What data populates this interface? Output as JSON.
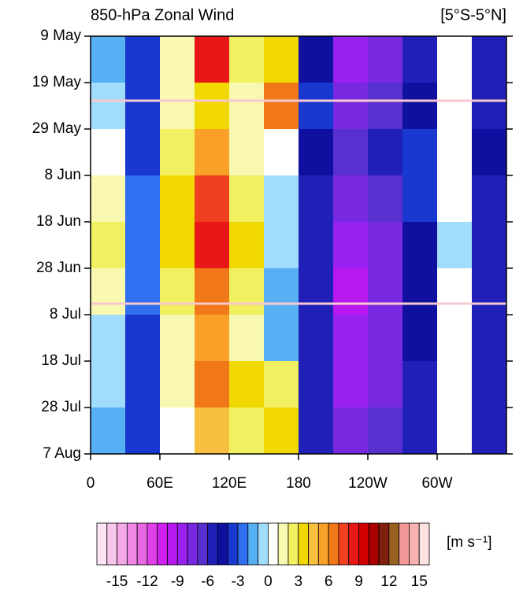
{
  "chart_data": {
    "type": "heatmap",
    "title": "850-hPa Zonal Wind",
    "subtitle": "[5°S-5°N]",
    "x": [
      15,
      45,
      75,
      105,
      135,
      165,
      195,
      225,
      255,
      285,
      315,
      345
    ],
    "y": [
      5,
      15,
      25,
      35,
      45,
      55,
      65,
      75,
      85
    ],
    "z": [
      [
        -2,
        -4,
        1,
        8,
        2,
        3,
        -5,
        -9,
        -8,
        -6,
        0,
        -6
      ],
      [
        -1,
        -4,
        1,
        3,
        1,
        6,
        -4,
        -8,
        -7,
        -5,
        0,
        -6
      ],
      [
        0,
        -4,
        2,
        5,
        1,
        0,
        -5,
        -7,
        -6,
        -4,
        0,
        -5
      ],
      [
        1,
        -3,
        3,
        7,
        2,
        -1,
        -6,
        -8,
        -7,
        -4,
        0,
        -6
      ],
      [
        2,
        -3,
        3,
        8,
        3,
        -1,
        -6,
        -9,
        -8,
        -5,
        -1,
        -6
      ],
      [
        1,
        -3,
        2,
        6,
        2,
        -2,
        -6,
        -10,
        -8,
        -5,
        0,
        -6
      ],
      [
        -1,
        -4,
        1,
        5,
        1,
        -2,
        -6,
        -9,
        -8,
        -5,
        0,
        -6
      ],
      [
        -1,
        -4,
        1,
        6,
        3,
        2,
        -6,
        -9,
        -8,
        -6,
        0,
        -6
      ],
      [
        -2,
        -4,
        0,
        4,
        2,
        3,
        -6,
        -8,
        -7,
        -6,
        0,
        -6
      ]
    ],
    "xlim": [
      0,
      360
    ],
    "ylim": [
      0,
      90
    ],
    "xticks": [
      0,
      {
        "value": 60,
        "label": "60E"
      },
      {
        "value": 120,
        "label": "120E"
      },
      180,
      {
        "value": 240,
        "label": "120W"
      },
      {
        "value": 300,
        "label": "60W"
      }
    ],
    "yticks": [
      {
        "value": 0,
        "label": "9 May"
      },
      {
        "value": 10,
        "label": "19 May"
      },
      {
        "value": 20,
        "label": "29 May"
      },
      {
        "value": 30,
        "label": "8 Jun"
      },
      {
        "value": 40,
        "label": "18 Jun"
      },
      {
        "value": 50,
        "label": "28 Jun"
      },
      {
        "value": 60,
        "label": "8 Jul"
      },
      {
        "value": 70,
        "label": "18 Jul"
      },
      {
        "value": 80,
        "label": "28 Jul"
      },
      {
        "value": 90,
        "label": "7 Aug"
      }
    ],
    "levels": [
      -16,
      -15,
      -14,
      -13,
      -12,
      -11,
      -10,
      -9,
      -8,
      -7,
      -6,
      -5,
      -4,
      -3,
      -2,
      -1,
      0,
      1,
      2,
      3,
      4,
      5,
      6,
      7,
      8,
      9,
      10,
      11,
      12,
      13,
      14,
      15,
      16
    ],
    "colors": [
      "#fce4f4",
      "#f8c8ec",
      "#f4a8e8",
      "#ee88e4",
      "#e868e4",
      "#e040e8",
      "#d020f0",
      "#b818f0",
      "#9820f0",
      "#7828e0",
      "#5830d0",
      "#2020b8",
      "#1010a0",
      "#1838d0",
      "#3070f0",
      "#58b0f4",
      "#a0dcfc",
      "#ffffff",
      "#f8f8b0",
      "#f0f060",
      "#f0d800",
      "#f8c040",
      "#f8a028",
      "#f07818",
      "#f04020",
      "#e81818",
      "#d00000",
      "#a80000",
      "#802010",
      "#986020",
      "#f09898",
      "#f8b0b0",
      "#fde0e0"
    ],
    "colorbar_ticks": [
      -15,
      -12,
      -9,
      -6,
      -3,
      0,
      3,
      6,
      9,
      12,
      15
    ],
    "colorbar_label": "[m s⁻¹]"
  }
}
